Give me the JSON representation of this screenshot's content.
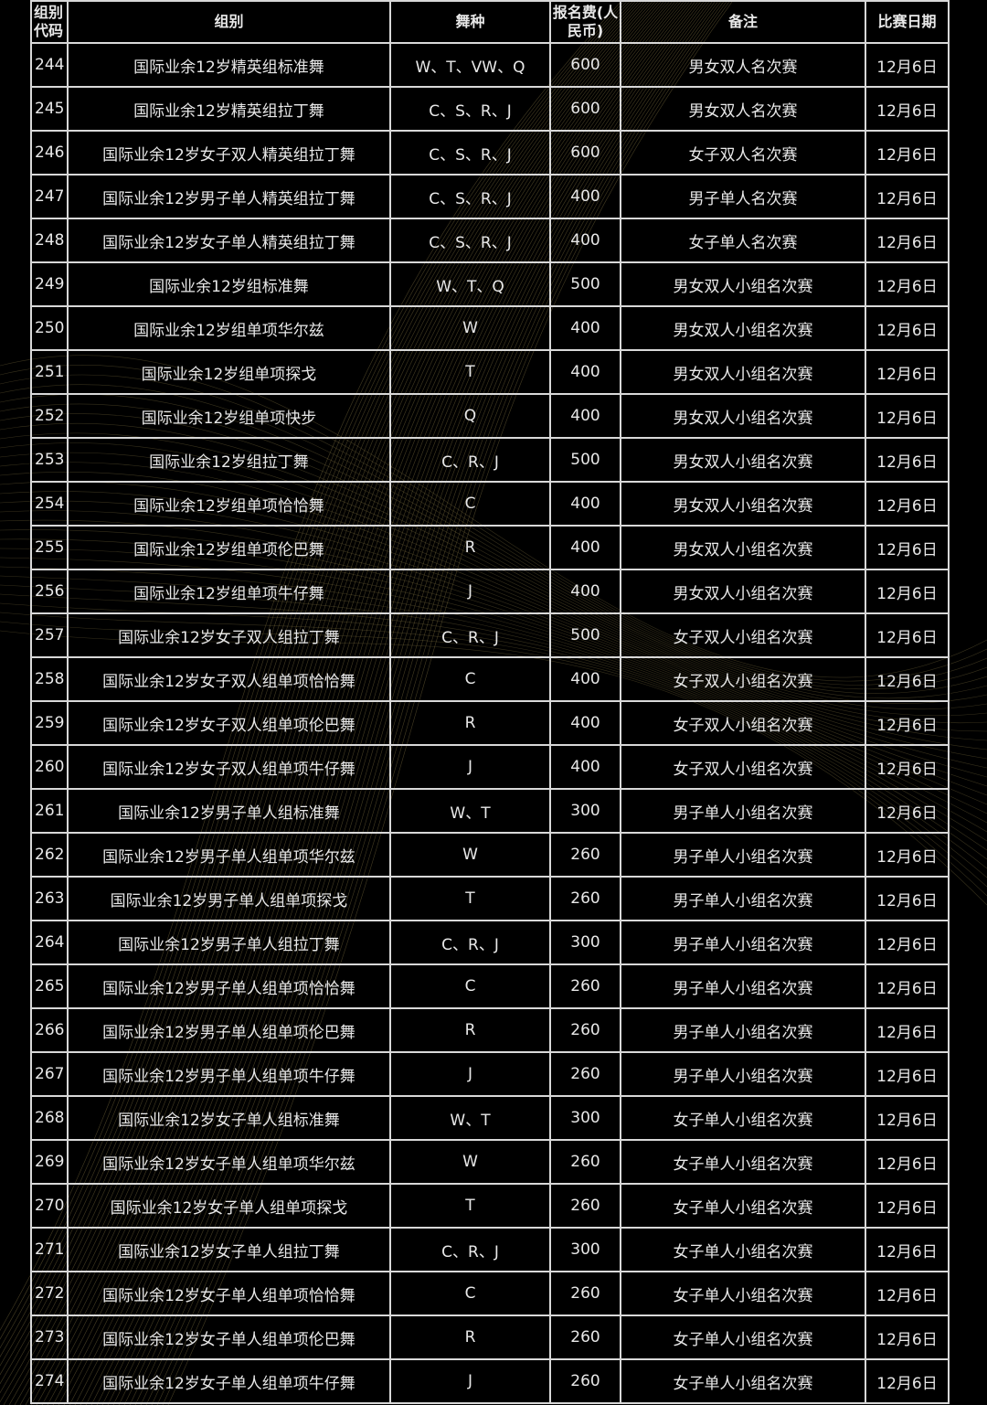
{
  "header": {
    "code": "组别代码",
    "group": "组别",
    "dance": "舞种",
    "fee": "报名费(人民币)",
    "note": "备注",
    "date": "比赛日期"
  },
  "colors": {
    "background": "#000000",
    "pattern": "#8a7a45",
    "grid": "#d8d8d8"
  },
  "rows": [
    [
      "244",
      "国际业余12岁精英组标准舞",
      "W、T、VW、Q",
      "600",
      "男女双人名次赛",
      "12月6日"
    ],
    [
      "245",
      "国际业余12岁精英组拉丁舞",
      "C、S、R、J",
      "600",
      "男女双人名次赛",
      "12月6日"
    ],
    [
      "246",
      "国际业余12岁女子双人精英组拉丁舞",
      "C、S、R、J",
      "600",
      "女子双人名次赛",
      "12月6日"
    ],
    [
      "247",
      "国际业余12岁男子单人精英组拉丁舞",
      "C、S、R、J",
      "400",
      "男子单人名次赛",
      "12月6日"
    ],
    [
      "248",
      "国际业余12岁女子单人精英组拉丁舞",
      "C、S、R、J",
      "400",
      "女子单人名次赛",
      "12月6日"
    ],
    [
      "249",
      "国际业余12岁组标准舞",
      "W、T、Q",
      "500",
      "男女双人小组名次赛",
      "12月6日"
    ],
    [
      "250",
      "国际业余12岁组单项华尔兹",
      "W",
      "400",
      "男女双人小组名次赛",
      "12月6日"
    ],
    [
      "251",
      "国际业余12岁组单项探戈",
      "T",
      "400",
      "男女双人小组名次赛",
      "12月6日"
    ],
    [
      "252",
      "国际业余12岁组单项快步",
      "Q",
      "400",
      "男女双人小组名次赛",
      "12月6日"
    ],
    [
      "253",
      "国际业余12岁组拉丁舞",
      "C、R、J",
      "500",
      "男女双人小组名次赛",
      "12月6日"
    ],
    [
      "254",
      "国际业余12岁组单项恰恰舞",
      "C",
      "400",
      "男女双人小组名次赛",
      "12月6日"
    ],
    [
      "255",
      "国际业余12岁组单项伦巴舞",
      "R",
      "400",
      "男女双人小组名次赛",
      "12月6日"
    ],
    [
      "256",
      "国际业余12岁组单项牛仔舞",
      "J",
      "400",
      "男女双人小组名次赛",
      "12月6日"
    ],
    [
      "257",
      "国际业余12岁女子双人组拉丁舞",
      "C、R、J",
      "500",
      "女子双人小组名次赛",
      "12月6日"
    ],
    [
      "258",
      "国际业余12岁女子双人组单项恰恰舞",
      "C",
      "400",
      "女子双人小组名次赛",
      "12月6日"
    ],
    [
      "259",
      "国际业余12岁女子双人组单项伦巴舞",
      "R",
      "400",
      "女子双人小组名次赛",
      "12月6日"
    ],
    [
      "260",
      "国际业余12岁女子双人组单项牛仔舞",
      "J",
      "400",
      "女子双人小组名次赛",
      "12月6日"
    ],
    [
      "261",
      "国际业余12岁男子单人组标准舞",
      "W、T",
      "300",
      "男子单人小组名次赛",
      "12月6日"
    ],
    [
      "262",
      "国际业余12岁男子单人组单项华尔兹",
      "W",
      "260",
      "男子单人小组名次赛",
      "12月6日"
    ],
    [
      "263",
      "国际业余12岁男子单人组单项探戈",
      "T",
      "260",
      "男子单人小组名次赛",
      "12月6日"
    ],
    [
      "264",
      "国际业余12岁男子单人组拉丁舞",
      "C、R、J",
      "300",
      "男子单人小组名次赛",
      "12月6日"
    ],
    [
      "265",
      "国际业余12岁男子单人组单项恰恰舞",
      "C",
      "260",
      "男子单人小组名次赛",
      "12月6日"
    ],
    [
      "266",
      "国际业余12岁男子单人组单项伦巴舞",
      "R",
      "260",
      "男子单人小组名次赛",
      "12月6日"
    ],
    [
      "267",
      "国际业余12岁男子单人组单项牛仔舞",
      "J",
      "260",
      "男子单人小组名次赛",
      "12月6日"
    ],
    [
      "268",
      "国际业余12岁女子单人组标准舞",
      "W、T",
      "300",
      "女子单人小组名次赛",
      "12月6日"
    ],
    [
      "269",
      "国际业余12岁女子单人组单项华尔兹",
      "W",
      "260",
      "女子单人小组名次赛",
      "12月6日"
    ],
    [
      "270",
      "国际业余12岁女子单人组单项探戈",
      "T",
      "260",
      "女子单人小组名次赛",
      "12月6日"
    ],
    [
      "271",
      "国际业余12岁女子单人组拉丁舞",
      "C、R、J",
      "300",
      "女子单人小组名次赛",
      "12月6日"
    ],
    [
      "272",
      "国际业余12岁女子单人组单项恰恰舞",
      "C",
      "260",
      "女子单人小组名次赛",
      "12月6日"
    ],
    [
      "273",
      "国际业余12岁女子单人组单项伦巴舞",
      "R",
      "260",
      "女子单人小组名次赛",
      "12月6日"
    ],
    [
      "274",
      "国际业余12岁女子单人组单项牛仔舞",
      "J",
      "260",
      "女子单人小组名次赛",
      "12月6日"
    ]
  ]
}
